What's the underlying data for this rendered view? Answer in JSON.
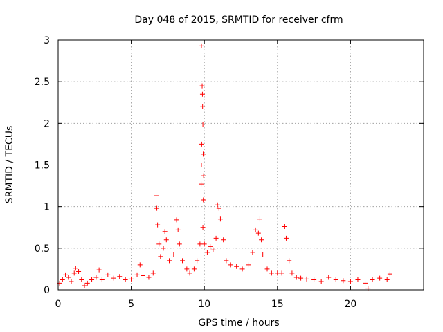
{
  "chart_data": {
    "type": "scatter",
    "title": "Day 048 of 2015, SRMTID for receiver cfrm",
    "xlabel": "GPS time / hours",
    "ylabel": "SRMTID / TECUs",
    "xlim": [
      0,
      25
    ],
    "ylim": [
      0,
      3
    ],
    "x_ticks": [
      0,
      5,
      10,
      15,
      20
    ],
    "y_ticks": [
      0,
      0.5,
      1,
      1.5,
      2,
      2.5,
      3
    ],
    "x_tick_labels": [
      "0",
      "5",
      "10",
      "15",
      "20"
    ],
    "y_tick_labels": [
      "0",
      "0.5",
      "1",
      "1.5",
      "2",
      "2.5",
      "3"
    ],
    "grid": true,
    "marker": "+",
    "color": "#ff0000",
    "series": [
      {
        "name": "SRMTID",
        "points": [
          [
            0.1,
            0.08
          ],
          [
            0.3,
            0.12
          ],
          [
            0.5,
            0.18
          ],
          [
            0.7,
            0.15
          ],
          [
            0.9,
            0.1
          ],
          [
            1.1,
            0.2
          ],
          [
            1.2,
            0.26
          ],
          [
            1.4,
            0.22
          ],
          [
            1.6,
            0.12
          ],
          [
            1.8,
            0.05
          ],
          [
            2.0,
            0.08
          ],
          [
            2.3,
            0.12
          ],
          [
            2.6,
            0.15
          ],
          [
            2.8,
            0.24
          ],
          [
            3.0,
            0.12
          ],
          [
            3.4,
            0.18
          ],
          [
            3.8,
            0.14
          ],
          [
            4.2,
            0.16
          ],
          [
            4.6,
            0.12
          ],
          [
            5.0,
            0.13
          ],
          [
            5.4,
            0.18
          ],
          [
            5.6,
            0.3
          ],
          [
            5.8,
            0.17
          ],
          [
            6.2,
            0.15
          ],
          [
            6.5,
            0.2
          ],
          [
            6.7,
            1.13
          ],
          [
            6.75,
            0.98
          ],
          [
            6.8,
            0.78
          ],
          [
            6.9,
            0.55
          ],
          [
            7.0,
            0.4
          ],
          [
            7.2,
            0.5
          ],
          [
            7.3,
            0.7
          ],
          [
            7.4,
            0.6
          ],
          [
            7.6,
            0.35
          ],
          [
            7.9,
            0.42
          ],
          [
            8.1,
            0.84
          ],
          [
            8.2,
            0.72
          ],
          [
            8.3,
            0.55
          ],
          [
            8.5,
            0.35
          ],
          [
            8.8,
            0.25
          ],
          [
            9.0,
            0.2
          ],
          [
            9.3,
            0.25
          ],
          [
            9.5,
            0.35
          ],
          [
            9.7,
            0.55
          ],
          [
            9.8,
            2.93
          ],
          [
            9.85,
            2.45
          ],
          [
            9.87,
            2.35
          ],
          [
            9.88,
            2.2
          ],
          [
            9.9,
            1.99
          ],
          [
            9.82,
            1.75
          ],
          [
            9.92,
            1.63
          ],
          [
            9.8,
            1.5
          ],
          [
            9.95,
            1.37
          ],
          [
            9.78,
            1.27
          ],
          [
            9.93,
            1.08
          ],
          [
            9.9,
            0.75
          ],
          [
            10.0,
            0.55
          ],
          [
            10.2,
            0.45
          ],
          [
            10.4,
            0.52
          ],
          [
            10.6,
            0.48
          ],
          [
            10.8,
            0.62
          ],
          [
            10.9,
            1.02
          ],
          [
            11.0,
            0.98
          ],
          [
            11.1,
            0.85
          ],
          [
            11.3,
            0.6
          ],
          [
            11.5,
            0.35
          ],
          [
            11.8,
            0.3
          ],
          [
            12.2,
            0.28
          ],
          [
            12.6,
            0.25
          ],
          [
            13.0,
            0.3
          ],
          [
            13.3,
            0.45
          ],
          [
            13.5,
            0.72
          ],
          [
            13.7,
            0.68
          ],
          [
            13.8,
            0.85
          ],
          [
            13.9,
            0.6
          ],
          [
            14.0,
            0.42
          ],
          [
            14.3,
            0.25
          ],
          [
            14.6,
            0.2
          ],
          [
            15.0,
            0.2
          ],
          [
            15.3,
            0.2
          ],
          [
            15.5,
            0.76
          ],
          [
            15.6,
            0.62
          ],
          [
            15.8,
            0.35
          ],
          [
            16.0,
            0.2
          ],
          [
            16.3,
            0.15
          ],
          [
            16.6,
            0.14
          ],
          [
            17.0,
            0.13
          ],
          [
            17.5,
            0.12
          ],
          [
            18.0,
            0.1
          ],
          [
            18.5,
            0.15
          ],
          [
            19.0,
            0.12
          ],
          [
            19.5,
            0.11
          ],
          [
            20.0,
            0.1
          ],
          [
            20.5,
            0.12
          ],
          [
            21.0,
            0.08
          ],
          [
            21.2,
            0.02
          ],
          [
            21.5,
            0.12
          ],
          [
            22.0,
            0.14
          ],
          [
            22.5,
            0.12
          ],
          [
            22.7,
            0.19
          ]
        ]
      }
    ]
  }
}
